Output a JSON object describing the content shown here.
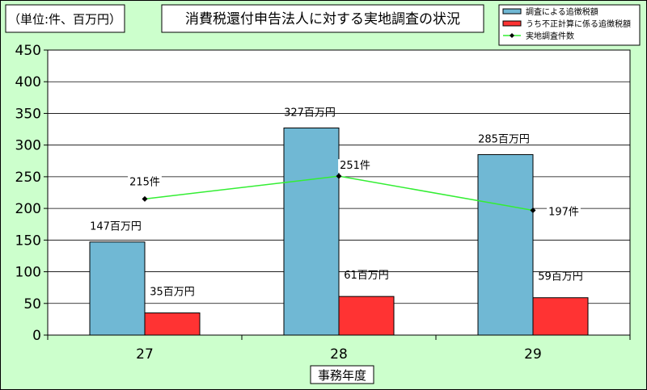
{
  "chart_data": {
    "type": "bar",
    "title": "消費税還付申告法人に対する実地調査の状況",
    "unit_note": "（単位:件、百万円）",
    "xlabel": "事務年度",
    "categories": [
      "27",
      "28",
      "29"
    ],
    "ylim": [
      0,
      450
    ],
    "yticks": [
      0,
      50,
      100,
      150,
      200,
      250,
      300,
      350,
      400,
      450
    ],
    "grid": true,
    "legend_position": "top-right",
    "series": [
      {
        "name": "調査による追徴税額",
        "kind": "bar",
        "color": "#70b8d4",
        "values": [
          147,
          327,
          285
        ],
        "labels": [
          "147百万円",
          "327百万円",
          "285百万円"
        ]
      },
      {
        "name": "うち不正計算に係る追徴税額",
        "kind": "bar",
        "color": "#ff3333",
        "values": [
          35,
          61,
          59
        ],
        "labels": [
          "35百万円",
          "61百万円",
          "59百万円"
        ]
      },
      {
        "name": "実地調査件数",
        "kind": "line",
        "color": "#33ee33",
        "values": [
          215,
          251,
          197
        ],
        "labels": [
          "215件",
          "251件",
          "197件"
        ]
      }
    ]
  }
}
